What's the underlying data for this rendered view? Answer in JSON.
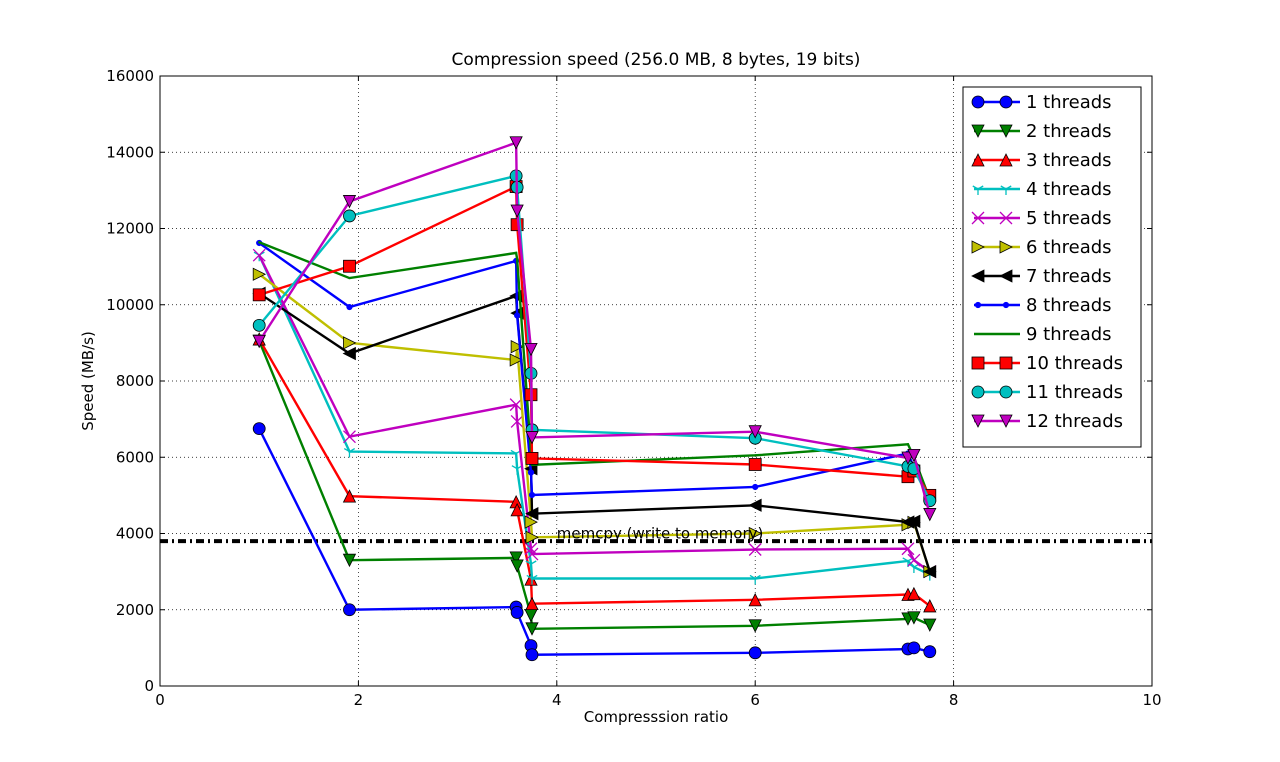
{
  "chart_data": {
    "type": "line",
    "title": "Compression speed (256.0 MB, 8 bytes, 19 bits)",
    "xlabel": "Compresssion ratio",
    "ylabel": "Speed (MB/s)",
    "xlim": [
      0,
      10
    ],
    "ylim": [
      0,
      16000
    ],
    "xticks": [
      "0",
      "2",
      "4",
      "6",
      "8",
      "10"
    ],
    "yticks": [
      "0",
      "2000",
      "4000",
      "6000",
      "8000",
      "10000",
      "12000",
      "14000",
      "16000"
    ],
    "grid": true,
    "legend_position": "top-right",
    "annotations": [
      {
        "text": "memcpy (write to memory)",
        "x": 4.0,
        "y": 4000
      }
    ],
    "reference_lines": [
      {
        "label": "memcpy",
        "y": 3800,
        "style": "dash-dot",
        "color": "#000000"
      }
    ],
    "series": [
      {
        "name": "1 threads",
        "color": "#0000ff",
        "marker": "circle",
        "x": [
          1.0,
          1.91,
          3.59,
          3.6,
          3.74,
          3.75,
          6.0,
          7.54,
          7.6,
          7.76
        ],
        "y": [
          6750,
          2000,
          2070,
          1930,
          1060,
          820,
          870,
          970,
          1000,
          900
        ]
      },
      {
        "name": "2 threads",
        "color": "#008000",
        "marker": "triangle-down",
        "x": [
          1.0,
          1.91,
          3.59,
          3.6,
          3.74,
          3.75,
          6.0,
          7.54,
          7.6,
          7.76
        ],
        "y": [
          9050,
          3300,
          3360,
          3150,
          1850,
          1500,
          1580,
          1760,
          1790,
          1600
        ]
      },
      {
        "name": "3 threads",
        "color": "#ff0000",
        "marker": "triangle-up",
        "x": [
          1.0,
          1.91,
          3.59,
          3.6,
          3.74,
          3.75,
          6.0,
          7.54,
          7.6,
          7.76
        ],
        "y": [
          9100,
          4980,
          4830,
          4620,
          2800,
          2160,
          2260,
          2400,
          2420,
          2100
        ]
      },
      {
        "name": "4 threads",
        "color": "#00bfbf",
        "marker": "tri-down",
        "x": [
          1.0,
          1.91,
          3.59,
          3.6,
          3.74,
          3.75,
          6.0,
          7.54,
          7.6,
          7.76
        ],
        "y": [
          11300,
          6150,
          6100,
          5700,
          3200,
          2820,
          2820,
          3280,
          3120,
          2920
        ]
      },
      {
        "name": "5 threads",
        "color": "#bf00bf",
        "marker": "x",
        "x": [
          1.0,
          1.91,
          3.59,
          3.6,
          3.74,
          3.75,
          6.0,
          7.54,
          7.6,
          7.76
        ],
        "y": [
          11300,
          6540,
          7380,
          6940,
          3600,
          3460,
          3580,
          3600,
          3300,
          3000
        ]
      },
      {
        "name": "6 threads",
        "color": "#bfbf00",
        "marker": "triangle-right",
        "x": [
          1.0,
          1.91,
          3.59,
          3.6,
          3.74,
          3.75,
          6.0,
          7.54,
          7.6,
          7.76
        ],
        "y": [
          10800,
          9000,
          8550,
          8900,
          4300,
          3900,
          4000,
          4230,
          4290,
          3000
        ]
      },
      {
        "name": "7 threads",
        "color": "#000000",
        "marker": "triangle-left",
        "x": [
          1.0,
          1.91,
          3.59,
          3.6,
          3.74,
          3.75,
          6.0,
          7.54,
          7.6,
          7.76
        ],
        "y": [
          10300,
          8720,
          10230,
          9780,
          5700,
          4520,
          4740,
          4300,
          4320,
          3000
        ]
      },
      {
        "name": "8 threads",
        "color": "#0000ff",
        "marker": "point",
        "x": [
          1.0,
          1.91,
          3.59,
          3.6,
          3.74,
          3.75,
          6.0,
          7.54,
          7.6,
          7.76
        ],
        "y": [
          11620,
          9940,
          11150,
          9720,
          5600,
          5010,
          5220,
          6100,
          5740,
          4950
        ]
      },
      {
        "name": "9 threads",
        "color": "#008000",
        "marker": "pixel",
        "x": [
          1.0,
          1.91,
          3.59,
          3.6,
          3.74,
          3.75,
          6.0,
          7.54,
          7.6,
          7.76
        ],
        "y": [
          11640,
          10700,
          11360,
          11200,
          6100,
          5800,
          6050,
          6340,
          6000,
          4900
        ]
      },
      {
        "name": "10 threads",
        "color": "#ff0000",
        "marker": "square",
        "x": [
          1.0,
          1.91,
          3.59,
          3.6,
          3.74,
          3.75,
          6.0,
          7.54,
          7.6,
          7.76
        ],
        "y": [
          10260,
          11010,
          13100,
          12100,
          7640,
          5970,
          5810,
          5490,
          5640,
          5000
        ]
      },
      {
        "name": "11 threads",
        "color": "#00bfbf",
        "marker": "circle",
        "x": [
          1.0,
          1.91,
          3.59,
          3.6,
          3.74,
          3.75,
          6.0,
          7.54,
          7.6,
          7.76
        ],
        "y": [
          9460,
          12330,
          13380,
          13080,
          8200,
          6720,
          6500,
          5760,
          5700,
          4860
        ]
      },
      {
        "name": "12 threads",
        "color": "#bf00bf",
        "marker": "triangle-down",
        "x": [
          1.0,
          1.91,
          3.59,
          3.6,
          3.74,
          3.75,
          6.0,
          7.54,
          7.6,
          7.76
        ],
        "y": [
          9040,
          12710,
          14250,
          12460,
          8830,
          6520,
          6670,
          5980,
          6050,
          4500
        ]
      }
    ]
  }
}
